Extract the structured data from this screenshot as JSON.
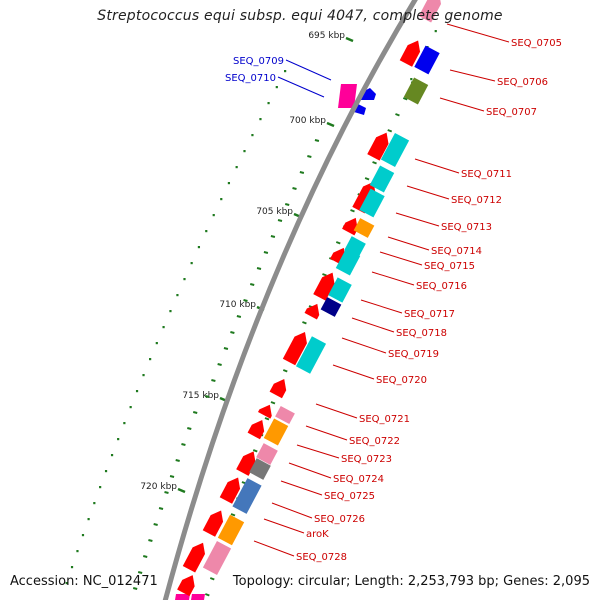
{
  "title": "Streptococcus equi subsp. equi 4047, complete genome",
  "footer": {
    "accession": "Accession: NC_012471",
    "topology": "Topology: circular; Length: 2,253,793 bp; Genes: 2,095"
  },
  "colors": {
    "backbone": "#8c8c8c",
    "label_forward": "#cc0000",
    "label_reverse": "#0000cc",
    "tick": "#1f7a1f"
  },
  "scale_ticks": [
    {
      "label": "695 kbp",
      "kbp": 695
    },
    {
      "label": "700 kbp",
      "kbp": 700
    },
    {
      "label": "705 kbp",
      "kbp": 705
    },
    {
      "label": "710 kbp",
      "kbp": 710
    },
    {
      "label": "715 kbp",
      "kbp": 715
    },
    {
      "label": "720 kbp",
      "kbp": 720
    }
  ],
  "gene_labels_forward": [
    "SEQ_0705",
    "SEQ_0706",
    "SEQ_0707",
    "SEQ_0711",
    "SEQ_0712",
    "SEQ_0713",
    "SEQ_0714",
    "SEQ_0715",
    "SEQ_0716",
    "SEQ_0717",
    "SEQ_0718",
    "SEQ_0719",
    "SEQ_0720",
    "SEQ_0721",
    "SEQ_0722",
    "SEQ_0723",
    "SEQ_0724",
    "SEQ_0725",
    "SEQ_0726",
    "aroK",
    "SEQ_0728"
  ],
  "gene_labels_reverse": [
    "SEQ_0709",
    "SEQ_0710"
  ],
  "cog_colors": {
    "red": "#ff0000",
    "pink": "#ee88aa",
    "cyan": "#00cccc",
    "orange": "#ff9900",
    "blue": "#0000ee",
    "navy": "#000088",
    "olive": "#668822",
    "gray": "#777777",
    "steelblue": "#4477bb",
    "magenta": "#ff0099"
  }
}
